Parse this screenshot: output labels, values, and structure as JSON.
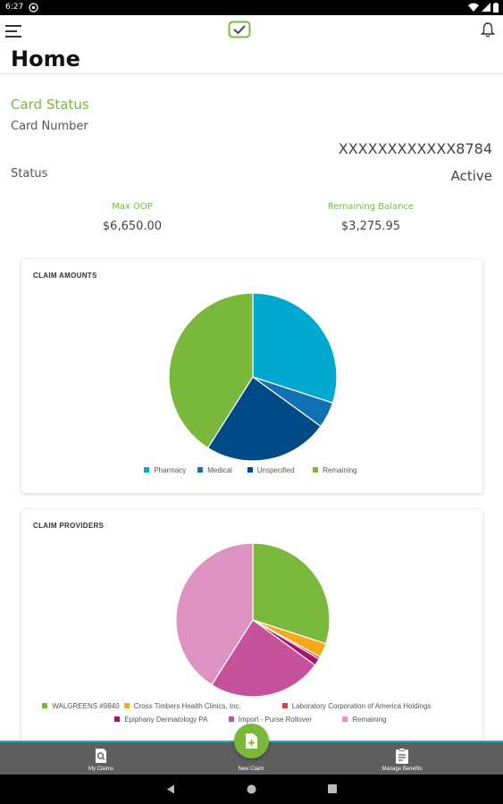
{
  "status_bar": {
    "time": "6:27"
  },
  "header": {
    "title": "Home"
  },
  "card_status": {
    "section_title": "Card Status",
    "card_number_label": "Card Number",
    "card_number_value": "XXXXXXXXXXXX8784",
    "status_label": "Status",
    "status_value": "Active",
    "max_oop_label": "Max OOP",
    "max_oop_value": "$6,650.00",
    "remaining_balance_label": "Remaining Balance",
    "remaining_balance_value": "$3,275.95"
  },
  "colors": {
    "accent_green": "#79b83a",
    "pharmacy": "#00a9cf",
    "medical": "#1271b3",
    "unspecified": "#004b87",
    "remaining": "#79b83a"
  },
  "chart_data": [
    {
      "type": "pie",
      "title": "CLAIM AMOUNTS",
      "legend_position": "bottom",
      "slices": [
        {
          "label": "Pharmacy",
          "value": 30.0,
          "color": "#00a9cf"
        },
        {
          "label": "Medical",
          "value": 5.0,
          "color": "#1271b3"
        },
        {
          "label": "Unspecified",
          "value": 24.0,
          "color": "#004b87"
        },
        {
          "label": "Remaining",
          "value": 41.0,
          "color": "#79b83a"
        }
      ]
    },
    {
      "type": "pie",
      "title": "CLAIM PROVIDERS",
      "legend_position": "bottom",
      "slices": [
        {
          "label": "WALGREENS #9840",
          "value": 30.0,
          "color": "#7ab93c"
        },
        {
          "label": "Cross Timbers Health Clinics, Inc.",
          "value": 3.0,
          "color": "#f7a81b"
        },
        {
          "label": "Laboratory Corporation of America Holdings",
          "value": 0.5,
          "color": "#d9413b"
        },
        {
          "label": "Epiphany Dermatology PA",
          "value": 1.5,
          "color": "#a4146e"
        },
        {
          "label": "Import - Purse Rollover",
          "value": 24.0,
          "color": "#c5529a"
        },
        {
          "label": "Remaining",
          "value": 41.0,
          "color": "#de93c3"
        }
      ]
    }
  ],
  "bottom_nav": {
    "my_claims": "My Claims",
    "new_claim": "New Claim",
    "manage_benefits": "Manage Benefits"
  }
}
